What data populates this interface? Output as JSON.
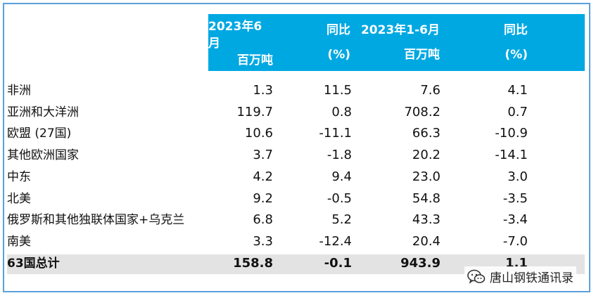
{
  "header": {
    "col1": {
      "line1": "2023年6月",
      "line2": "百万吨"
    },
    "col2": {
      "line1": "同比",
      "line2": "(%)"
    },
    "col3": {
      "line1": "2023年1-6月",
      "line2": "百万吨"
    },
    "col4": {
      "line1": "同比",
      "line2": "(%)"
    }
  },
  "rows": [
    {
      "region": "非洲",
      "jun": "1.3",
      "jun_yoy": "11.5",
      "h1": "7.6",
      "h1_yoy": "4.1"
    },
    {
      "region": "亚洲和大洋洲",
      "jun": "119.7",
      "jun_yoy": "0.8",
      "h1": "708.2",
      "h1_yoy": "0.7"
    },
    {
      "region": "欧盟 (27国)",
      "jun": "10.6",
      "jun_yoy": "-11.1",
      "h1": "66.3",
      "h1_yoy": "-10.9"
    },
    {
      "region": "其他欧洲国家",
      "jun": "3.7",
      "jun_yoy": "-1.8",
      "h1": "20.2",
      "h1_yoy": "-14.1"
    },
    {
      "region": "中东",
      "jun": "4.2",
      "jun_yoy": "9.4",
      "h1": "23.0",
      "h1_yoy": "3.0"
    },
    {
      "region": "北美",
      "jun": "9.2",
      "jun_yoy": "-0.5",
      "h1": "54.8",
      "h1_yoy": "-3.5"
    },
    {
      "region": "俄罗斯和其他独联体国家+乌克兰",
      "jun": "6.8",
      "jun_yoy": "5.2",
      "h1": "43.3",
      "h1_yoy": "-3.4"
    },
    {
      "region": "南美",
      "jun": "3.3",
      "jun_yoy": "-12.4",
      "h1": "20.4",
      "h1_yoy": "-7.0"
    },
    {
      "region": "63国总计",
      "jun": "158.8",
      "jun_yoy": "-0.1",
      "h1": "943.9",
      "h1_yoy": "1.1"
    }
  ],
  "watermark": {
    "text": "唐山钢铁通讯录",
    "icon": "wechat-icon"
  },
  "colors": {
    "header_bg": "#00a8e2",
    "total_row_bg": "#e3e3e3",
    "frame": "#5aa0dc"
  }
}
